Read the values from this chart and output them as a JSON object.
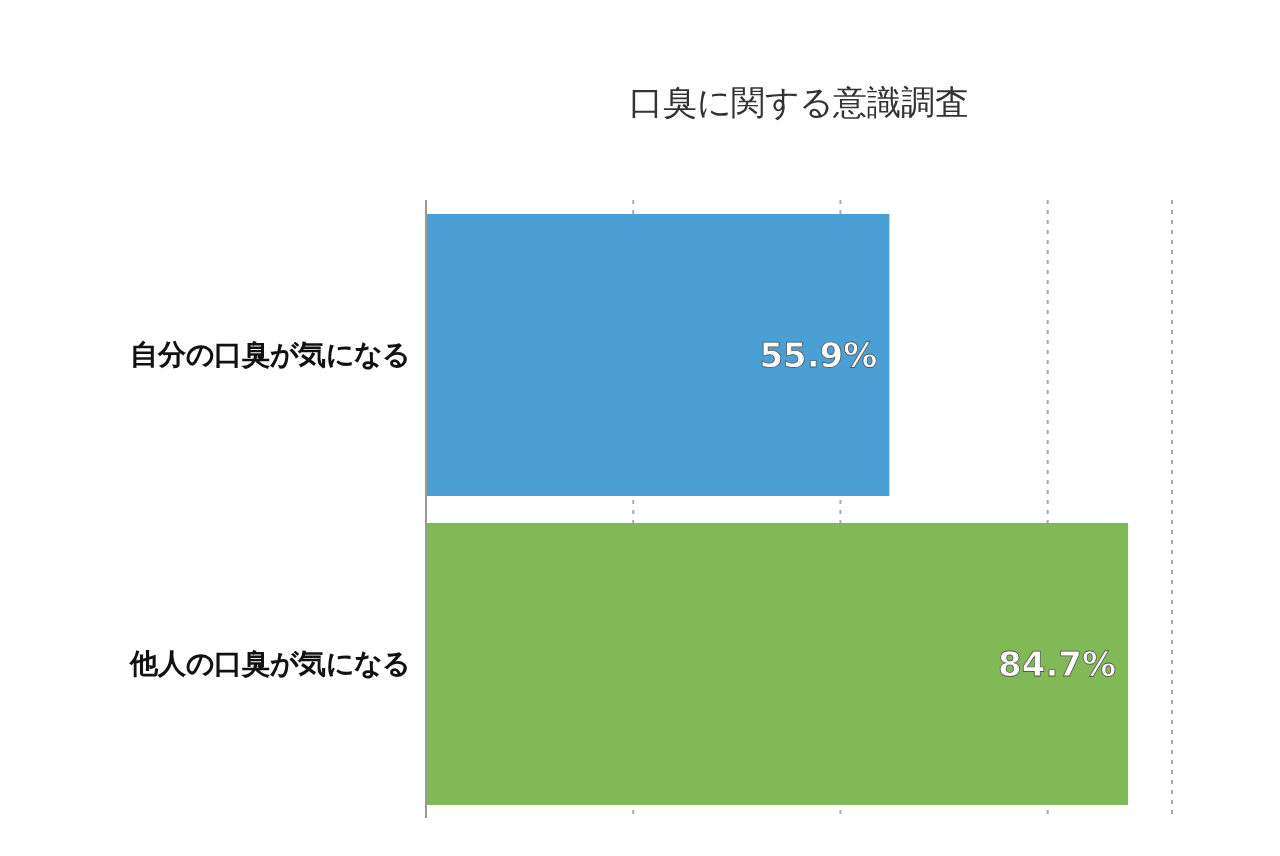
{
  "chart_data": {
    "type": "bar",
    "orientation": "horizontal",
    "title": "口臭に関する意識調査",
    "categories": [
      "自分の口臭が気になる",
      "他人の口臭が気になる"
    ],
    "values": [
      55.9,
      84.7
    ],
    "colors": [
      "#4a9fd5",
      "#80b956"
    ],
    "value_labels": [
      "55.9%",
      "84.7%"
    ],
    "xlim": [
      0,
      90
    ],
    "tick_labels": "y",
    "grid": "x"
  }
}
